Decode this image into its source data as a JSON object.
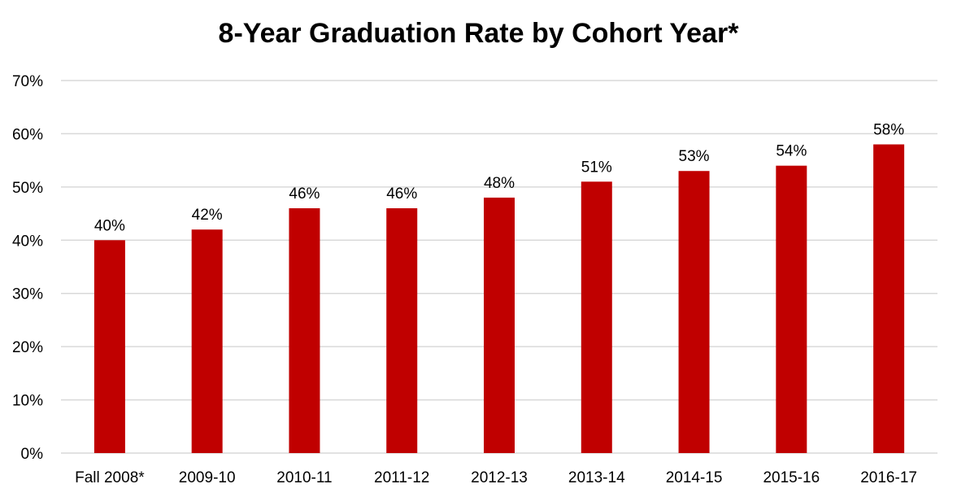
{
  "chart_data": {
    "type": "bar",
    "title": "8-Year Graduation Rate by Cohort Year*",
    "xlabel": "",
    "ylabel": "",
    "categories": [
      "Fall 2008*",
      "2009-10",
      "2010-11",
      "2011-12",
      "2012-13",
      "2013-14",
      "2014-15",
      "2015-16",
      "2016-17"
    ],
    "values": [
      40,
      42,
      46,
      46,
      48,
      51,
      53,
      54,
      58
    ],
    "data_labels": [
      "40%",
      "42%",
      "46%",
      "46%",
      "48%",
      "51%",
      "53%",
      "54%",
      "58%"
    ],
    "ylim": [
      0,
      70
    ],
    "yticks": [
      0,
      10,
      20,
      30,
      40,
      50,
      60,
      70
    ],
    "ytick_labels": [
      "0%",
      "10%",
      "20%",
      "30%",
      "40%",
      "50%",
      "60%",
      "70%"
    ],
    "grid": true,
    "legend": "none",
    "bar_color": "#C00000",
    "grid_color": "#D9D9D9"
  }
}
